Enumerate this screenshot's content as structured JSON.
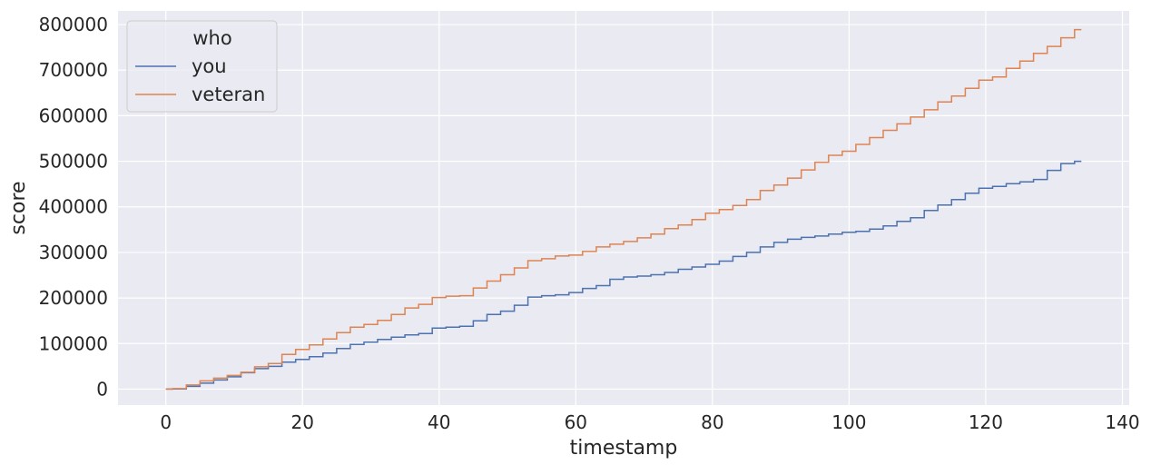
{
  "chart_data": {
    "type": "line",
    "xlabel": "timestamp",
    "ylabel": "score",
    "xlim": [
      -7,
      141
    ],
    "ylim": [
      -35000,
      830000
    ],
    "x_ticks": [
      0,
      20,
      40,
      60,
      80,
      100,
      120,
      140
    ],
    "y_ticks": [
      0,
      100000,
      200000,
      300000,
      400000,
      500000,
      600000,
      700000,
      800000
    ],
    "grid": true,
    "legend": {
      "title": "who",
      "placement": "top-left",
      "entries": [
        "you",
        "veteran"
      ]
    },
    "series": [
      {
        "name": "you",
        "color": "#4c72b0",
        "points": [
          [
            0,
            0
          ],
          [
            2,
            500
          ],
          [
            4,
            6000
          ],
          [
            6,
            13000
          ],
          [
            8,
            20000
          ],
          [
            10,
            27000
          ],
          [
            12,
            36000
          ],
          [
            14,
            45000
          ],
          [
            16,
            50000
          ],
          [
            18,
            59000
          ],
          [
            20,
            65000
          ],
          [
            22,
            71000
          ],
          [
            24,
            79000
          ],
          [
            26,
            89000
          ],
          [
            28,
            98000
          ],
          [
            30,
            103000
          ],
          [
            32,
            109000
          ],
          [
            34,
            114000
          ],
          [
            36,
            119000
          ],
          [
            38,
            122000
          ],
          [
            40,
            134000
          ],
          [
            42,
            136000
          ],
          [
            44,
            138000
          ],
          [
            46,
            150000
          ],
          [
            48,
            164000
          ],
          [
            50,
            171000
          ],
          [
            52,
            184000
          ],
          [
            54,
            202000
          ],
          [
            56,
            205000
          ],
          [
            58,
            207000
          ],
          [
            60,
            212000
          ],
          [
            62,
            221000
          ],
          [
            64,
            227000
          ],
          [
            66,
            241000
          ],
          [
            68,
            246000
          ],
          [
            70,
            248000
          ],
          [
            72,
            251000
          ],
          [
            74,
            256000
          ],
          [
            76,
            263000
          ],
          [
            78,
            268000
          ],
          [
            80,
            274000
          ],
          [
            82,
            281000
          ],
          [
            84,
            291000
          ],
          [
            86,
            300000
          ],
          [
            88,
            312000
          ],
          [
            90,
            322000
          ],
          [
            92,
            329000
          ],
          [
            94,
            333000
          ],
          [
            96,
            336000
          ],
          [
            98,
            340000
          ],
          [
            100,
            344000
          ],
          [
            102,
            346000
          ],
          [
            104,
            351000
          ],
          [
            106,
            358000
          ],
          [
            108,
            368000
          ],
          [
            110,
            376000
          ],
          [
            112,
            392000
          ],
          [
            114,
            404000
          ],
          [
            116,
            416000
          ],
          [
            118,
            430000
          ],
          [
            120,
            441000
          ],
          [
            122,
            445000
          ],
          [
            124,
            451000
          ],
          [
            126,
            455000
          ],
          [
            128,
            460000
          ],
          [
            130,
            480000
          ],
          [
            132,
            495000
          ],
          [
            134,
            500000
          ]
        ]
      },
      {
        "name": "veteran",
        "color": "#dd8452",
        "points": [
          [
            0,
            0
          ],
          [
            2,
            1000
          ],
          [
            4,
            9000
          ],
          [
            6,
            18000
          ],
          [
            8,
            24000
          ],
          [
            10,
            30000
          ],
          [
            12,
            37000
          ],
          [
            14,
            49000
          ],
          [
            16,
            56000
          ],
          [
            18,
            76000
          ],
          [
            20,
            87000
          ],
          [
            22,
            97000
          ],
          [
            24,
            110000
          ],
          [
            26,
            124000
          ],
          [
            28,
            136000
          ],
          [
            30,
            142000
          ],
          [
            32,
            151000
          ],
          [
            34,
            164000
          ],
          [
            36,
            178000
          ],
          [
            38,
            186000
          ],
          [
            40,
            201000
          ],
          [
            42,
            204000
          ],
          [
            44,
            205000
          ],
          [
            46,
            222000
          ],
          [
            48,
            237000
          ],
          [
            50,
            251000
          ],
          [
            52,
            266000
          ],
          [
            54,
            282000
          ],
          [
            56,
            286000
          ],
          [
            58,
            292000
          ],
          [
            60,
            294000
          ],
          [
            62,
            302000
          ],
          [
            64,
            312000
          ],
          [
            66,
            318000
          ],
          [
            68,
            324000
          ],
          [
            70,
            332000
          ],
          [
            72,
            340000
          ],
          [
            74,
            352000
          ],
          [
            76,
            360000
          ],
          [
            78,
            372000
          ],
          [
            80,
            386000
          ],
          [
            82,
            394000
          ],
          [
            84,
            403000
          ],
          [
            86,
            416000
          ],
          [
            88,
            436000
          ],
          [
            90,
            448000
          ],
          [
            92,
            463000
          ],
          [
            94,
            481000
          ],
          [
            96,
            498000
          ],
          [
            98,
            513000
          ],
          [
            100,
            522000
          ],
          [
            102,
            537000
          ],
          [
            104,
            552000
          ],
          [
            106,
            568000
          ],
          [
            108,
            582000
          ],
          [
            110,
            597000
          ],
          [
            112,
            613000
          ],
          [
            114,
            630000
          ],
          [
            116,
            643000
          ],
          [
            118,
            660000
          ],
          [
            120,
            678000
          ],
          [
            122,
            685000
          ],
          [
            124,
            704000
          ],
          [
            126,
            720000
          ],
          [
            128,
            737000
          ],
          [
            130,
            752000
          ],
          [
            132,
            771000
          ],
          [
            134,
            789000
          ]
        ]
      }
    ]
  }
}
